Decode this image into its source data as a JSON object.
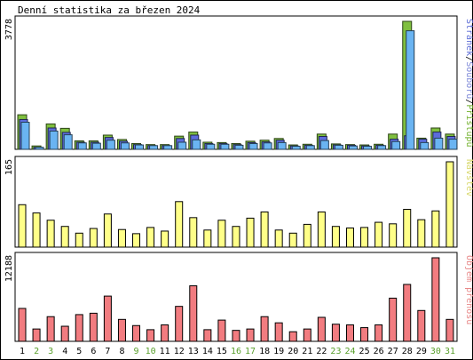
{
  "title": "Denní statistika za březen 2024",
  "chart_data": [
    {
      "type": "bar",
      "panel": "top",
      "ymax_label": "3778",
      "ylim": [
        0,
        3778
      ],
      "legend": [
        {
          "text": "Stránek",
          "color": "#5b6bd6"
        },
        {
          "text": "/",
          "color": "#000000"
        },
        {
          "text": "Souborů",
          "color": "#7d88d8"
        },
        {
          "text": "/",
          "color": "#000000"
        },
        {
          "text": "Přístupů",
          "color": "#73b12d"
        }
      ],
      "series": [
        {
          "name": "Přístupů",
          "color": "#7fbf3f",
          "values": [
            1020,
            100,
            750,
            620,
            250,
            250,
            420,
            290,
            170,
            140,
            140,
            390,
            510,
            210,
            200,
            170,
            240,
            270,
            320,
            130,
            150,
            450,
            160,
            140,
            130,
            150,
            450,
            3778,
            330,
            630,
            450
          ]
        },
        {
          "name": "Souborů",
          "color": "#5c6cdc",
          "values": [
            880,
            60,
            630,
            500,
            210,
            210,
            350,
            240,
            140,
            110,
            110,
            320,
            420,
            170,
            170,
            140,
            200,
            220,
            270,
            100,
            120,
            380,
            130,
            120,
            100,
            120,
            300,
            400,
            300,
            510,
            380
          ]
        },
        {
          "name": "Stránek",
          "color": "#6ab4f2",
          "values": [
            800,
            60,
            540,
            430,
            190,
            180,
            270,
            190,
            130,
            110,
            110,
            210,
            280,
            150,
            150,
            120,
            170,
            190,
            200,
            90,
            110,
            260,
            120,
            100,
            90,
            110,
            230,
            3500,
            200,
            330,
            300
          ]
        }
      ]
    },
    {
      "type": "bar",
      "panel": "middle",
      "ymax_label": "165",
      "ylim": [
        0,
        165
      ],
      "legend": [
        {
          "text": "Návštěv",
          "color": "#d8d86a"
        }
      ],
      "series": [
        {
          "name": "Návštěv",
          "color": "#ffff88",
          "values": [
            82,
            66,
            52,
            40,
            27,
            36,
            64,
            34,
            26,
            38,
            31,
            88,
            57,
            33,
            52,
            40,
            56,
            68,
            33,
            27,
            44,
            68,
            40,
            37,
            38,
            48,
            45,
            73,
            53,
            70,
            165
          ]
        }
      ]
    },
    {
      "type": "bar",
      "panel": "bottom",
      "ymax_label": "12188",
      "ylim": [
        0,
        12188
      ],
      "legend": [
        {
          "text": "Objem přenosu",
          "color": "#e88888"
        }
      ],
      "series": [
        {
          "name": "Objem přenosu",
          "color": "#f27c80",
          "values": [
            4800,
            1800,
            3600,
            2200,
            3900,
            4100,
            6600,
            3200,
            2300,
            1700,
            2400,
            5100,
            8100,
            1700,
            3100,
            1600,
            1800,
            3600,
            2700,
            1400,
            1800,
            3500,
            2500,
            2400,
            2000,
            2400,
            6300,
            8300,
            4500,
            12188,
            3200
          ]
        }
      ]
    }
  ],
  "x_axis": {
    "labels": [
      "1",
      "2",
      "3",
      "4",
      "5",
      "6",
      "7",
      "8",
      "9",
      "10",
      "11",
      "12",
      "13",
      "14",
      "15",
      "16",
      "17",
      "18",
      "19",
      "20",
      "21",
      "22",
      "23",
      "24",
      "25",
      "26",
      "27",
      "28",
      "29",
      "30",
      "31"
    ],
    "weekend_days": [
      "2",
      "3",
      "9",
      "10",
      "16",
      "17",
      "23",
      "24",
      "30",
      "31"
    ],
    "colors": {
      "weekday": "#000000",
      "weekend": "#5aa02c"
    }
  }
}
